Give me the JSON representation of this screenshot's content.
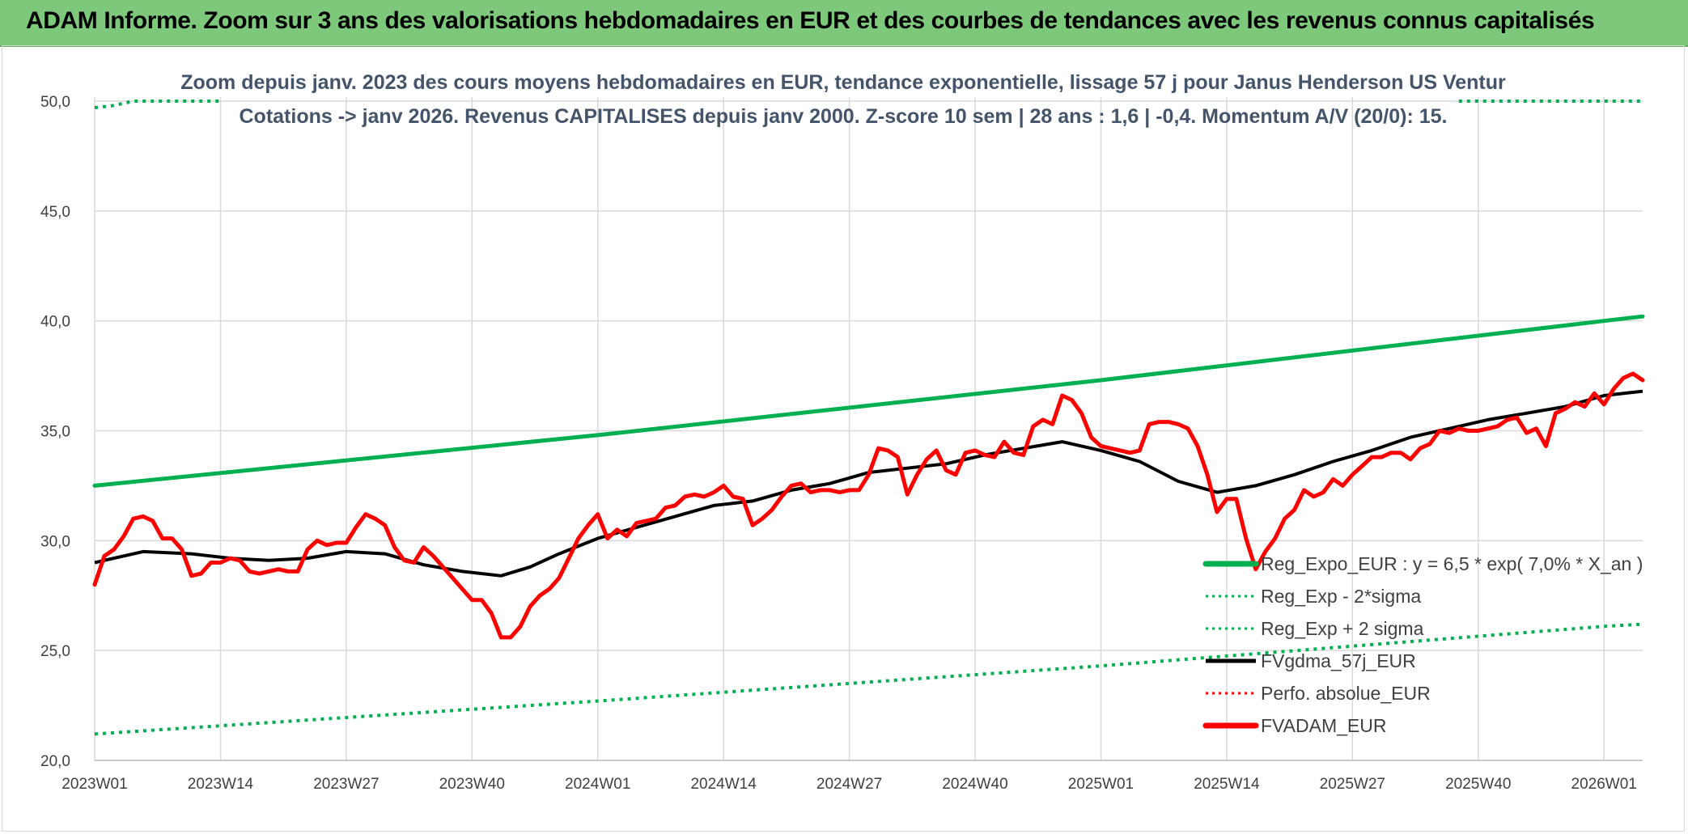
{
  "header": {
    "title": "ADAM Informe. Zoom sur 3 ans des valorisations hebdomadaires en EUR et des courbes de tendances avec les revenus connus capitalisés"
  },
  "chart_data": {
    "type": "line",
    "title": "",
    "subtitle_line1": "Zoom depuis janv. 2023 des cours moyens hebdomadaires en EUR, tendance exponentielle, lissage 57 j pour Janus Henderson US Ventur",
    "subtitle_line2": "Cotations -> janv 2026. Revenus CAPITALISES depuis janv 2000. Z-score 10 sem | 28 ans : 1,6 | -0,4. Momentum A/V (20/0): 15.",
    "xlabel": "",
    "ylabel": "",
    "ylim": [
      20,
      50
    ],
    "yticks": [
      "20,0",
      "25,0",
      "30,0",
      "35,0",
      "40,0",
      "45,0",
      "50,0"
    ],
    "xticks": [
      "2023W01",
      "2023W14",
      "2023W27",
      "2023W40",
      "2024W01",
      "2024W14",
      "2024W27",
      "2024W40",
      "2025W01",
      "2025W14",
      "2025W27",
      "2025W40",
      "2026W01"
    ],
    "xtick_week_index": [
      0,
      13,
      26,
      39,
      52,
      65,
      78,
      91,
      104,
      117,
      130,
      143,
      156
    ],
    "n_weeks": 161,
    "grid": true,
    "legend_position": "bottom-right",
    "series": [
      {
        "name": "Reg_Expo_EUR : y = 6,5 * exp( 7,0% *  X_an )",
        "style": "thick-solid",
        "color": "#00b050",
        "x": [
          0,
          52,
          104,
          156,
          160
        ],
        "values": [
          32.5,
          34.8,
          37.3,
          40.0,
          40.2
        ]
      },
      {
        "name": "Reg_Exp - 2*sigma",
        "style": "dotted",
        "color": "#00b050",
        "x": [
          0,
          52,
          104,
          156,
          160
        ],
        "values": [
          21.2,
          22.7,
          24.3,
          26.1,
          26.2
        ]
      },
      {
        "name": "Reg_Exp + 2 sigma",
        "style": "dotted",
        "color": "#00b050",
        "x": [
          0,
          2,
          4,
          8,
          12,
          13
        ],
        "values": [
          49.7,
          49.8,
          50.0,
          50.0,
          50.0,
          50.0
        ],
        "x2": [
          141,
          160
        ],
        "values2": [
          50.0,
          50.0
        ]
      },
      {
        "name": "FVgdma_57j_EUR",
        "style": "solid",
        "color": "#000000",
        "x": [
          0,
          5,
          10,
          14,
          18,
          22,
          26,
          30,
          34,
          38,
          42,
          45,
          48,
          52,
          56,
          60,
          64,
          68,
          72,
          76,
          80,
          84,
          88,
          92,
          96,
          100,
          104,
          108,
          112,
          116,
          120,
          124,
          128,
          132,
          136,
          140,
          144,
          148,
          152,
          156,
          160
        ],
        "values": [
          29.0,
          29.5,
          29.4,
          29.2,
          29.1,
          29.2,
          29.5,
          29.4,
          28.9,
          28.6,
          28.4,
          28.8,
          29.4,
          30.1,
          30.6,
          31.1,
          31.6,
          31.8,
          32.3,
          32.6,
          33.1,
          33.3,
          33.5,
          33.9,
          34.2,
          34.5,
          34.1,
          33.6,
          32.7,
          32.2,
          32.5,
          33.0,
          33.6,
          34.1,
          34.7,
          35.1,
          35.5,
          35.8,
          36.1,
          36.6,
          36.8
        ]
      },
      {
        "name": "Perfo. absolue_EUR",
        "style": "dotted",
        "color": "#ff0000",
        "x": [],
        "values": []
      },
      {
        "name": "FVADAM_EUR",
        "style": "thick-solid",
        "color": "#ff0000",
        "x": [
          0,
          1,
          2,
          3,
          4,
          5,
          6,
          7,
          8,
          9,
          10,
          11,
          12,
          13,
          14,
          15,
          16,
          17,
          18,
          19,
          20,
          21,
          22,
          23,
          24,
          25,
          26,
          27,
          28,
          29,
          30,
          31,
          32,
          33,
          34,
          35,
          36,
          37,
          38,
          39,
          40,
          41,
          42,
          43,
          44,
          45,
          46,
          47,
          48,
          49,
          50,
          51,
          52,
          53,
          54,
          55,
          56,
          57,
          58,
          59,
          60,
          61,
          62,
          63,
          64,
          65,
          66,
          67,
          68,
          69,
          70,
          71,
          72,
          73,
          74,
          75,
          76,
          77,
          78,
          79,
          80,
          81,
          82,
          83,
          84,
          85,
          86,
          87,
          88,
          89,
          90,
          91,
          92,
          93,
          94,
          95,
          96,
          97,
          98,
          99,
          100,
          101,
          102,
          103,
          104,
          105,
          106,
          107,
          108,
          109,
          110,
          111,
          112,
          113,
          114,
          115,
          116,
          117,
          118,
          119,
          120,
          121,
          122,
          123,
          124,
          125,
          126,
          127,
          128,
          129,
          130,
          131,
          132,
          133,
          134,
          135,
          136,
          137,
          138,
          139,
          140,
          141,
          142,
          143,
          144,
          145,
          146,
          147,
          148,
          149,
          150,
          151,
          152,
          153,
          154,
          155,
          156,
          157,
          158,
          159,
          160
        ],
        "values": [
          28.0,
          29.3,
          29.6,
          30.2,
          31.0,
          31.1,
          30.9,
          30.1,
          30.1,
          29.6,
          28.4,
          28.5,
          29.0,
          29.0,
          29.2,
          29.1,
          28.6,
          28.5,
          28.6,
          28.7,
          28.6,
          28.6,
          29.6,
          30.0,
          29.8,
          29.9,
          29.9,
          30.6,
          31.2,
          31.0,
          30.7,
          29.7,
          29.1,
          29.0,
          29.7,
          29.3,
          28.8,
          28.3,
          27.8,
          27.3,
          27.3,
          26.7,
          25.6,
          25.6,
          26.1,
          27.0,
          27.5,
          27.8,
          28.3,
          29.2,
          30.1,
          30.7,
          31.2,
          30.1,
          30.5,
          30.2,
          30.8,
          30.9,
          31.0,
          31.5,
          31.6,
          32.0,
          32.1,
          32.0,
          32.2,
          32.5,
          32.0,
          31.9,
          30.7,
          31.0,
          31.4,
          32.0,
          32.5,
          32.6,
          32.2,
          32.3,
          32.3,
          32.2,
          32.3,
          32.3,
          33.0,
          34.2,
          34.1,
          33.8,
          32.1,
          33.0,
          33.7,
          34.1,
          33.2,
          33.0,
          34.0,
          34.1,
          33.9,
          33.8,
          34.5,
          34.0,
          33.9,
          35.2,
          35.5,
          35.3,
          36.6,
          36.4,
          35.8,
          34.7,
          34.3,
          34.2,
          34.1,
          34.0,
          34.1,
          35.3,
          35.4,
          35.4,
          35.3,
          35.1,
          34.3,
          33.0,
          31.3,
          31.9,
          31.9,
          30.1,
          28.7,
          29.5,
          30.1,
          31.0,
          31.4,
          32.3,
          32.0,
          32.2,
          32.8,
          32.5,
          33.0,
          33.4,
          33.8,
          33.8,
          34.0,
          34.0,
          33.7,
          34.2,
          34.4,
          35.0,
          34.9,
          35.1,
          35.0,
          35.0,
          35.1,
          35.2,
          35.5,
          35.6,
          34.9,
          35.1,
          34.3,
          35.8,
          36.0,
          36.3,
          36.1,
          36.7,
          36.2,
          36.9,
          37.4,
          37.6,
          37.3
        ]
      }
    ]
  }
}
